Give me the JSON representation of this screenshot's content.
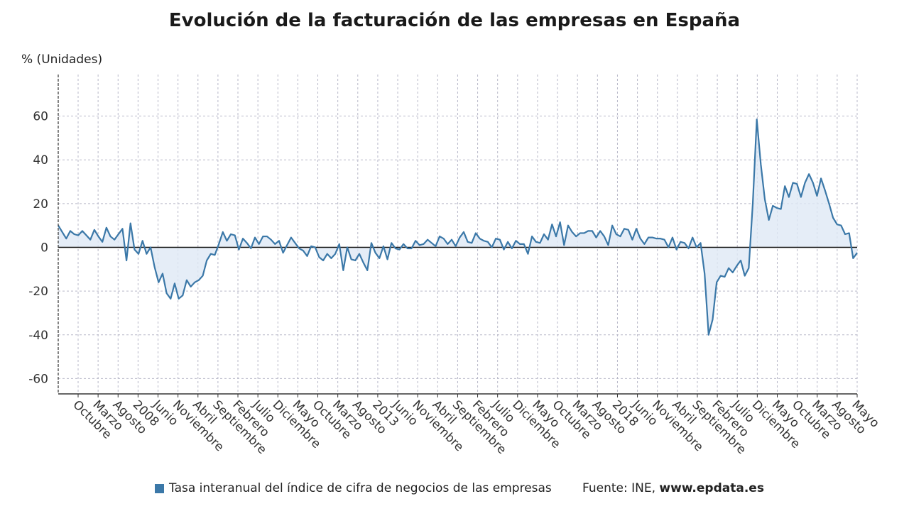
{
  "title": "Evolución de la facturación de las empresas en España",
  "legend": {
    "label": "Tasa interanual del índice de cifra de negocios de las empresas",
    "color": "#3b78a8"
  },
  "source": {
    "prefix": "Fuente: INE, ",
    "site": "www.epdata.es"
  },
  "chart_data": {
    "type": "area",
    "ylabel": "% (Unidades)",
    "xlabel": "",
    "ylim": [
      -67,
      79
    ],
    "yticks": [
      60,
      40,
      20,
      0,
      -20,
      -40,
      -60
    ],
    "grid": true,
    "x_tick_labels": [
      "Octubre",
      "Marzo",
      "Agosto",
      "2008",
      "Junio",
      "Noviembre",
      "Abril",
      "Septiembre",
      "Febrero",
      "Julio",
      "Diciembre",
      "Mayo",
      "Octubre",
      "Marzo",
      "Agosto",
      "2013",
      "Junio",
      "Noviembre",
      "Abril",
      "Septiembre",
      "Febrero",
      "Julio",
      "Diciembre",
      "Mayo",
      "Octubre",
      "Marzo",
      "Agosto",
      "2018",
      "Junio",
      "Noviembre",
      "Abril",
      "Septiembre",
      "Febrero",
      "Julio",
      "Diciembre",
      "Mayo",
      "Octubre",
      "Marzo",
      "Agosto",
      "Mayo"
    ],
    "series": [
      {
        "name": "Tasa interanual del índice de cifra de negocios de las empresas",
        "color": "#3b78a8",
        "values": [
          10,
          7,
          4,
          7.5,
          6,
          5.5,
          7.5,
          5.5,
          3.5,
          8,
          5,
          2.5,
          9,
          5,
          3.5,
          6,
          8.5,
          -6,
          11,
          -1,
          -3,
          3,
          -3,
          0,
          -9,
          -16,
          -12,
          -21,
          -23.5,
          -16.5,
          -23.5,
          -22,
          -15,
          -18,
          -16,
          -15,
          -13,
          -6,
          -3,
          -3.5,
          1.5,
          7,
          3,
          6,
          5.5,
          -1,
          4,
          2,
          -0.5,
          4.5,
          1.5,
          5,
          5,
          3.5,
          1.5,
          3,
          -2.5,
          1,
          4.5,
          2,
          -0.5,
          -1.5,
          -4,
          0.5,
          0,
          -4.5,
          -6,
          -3,
          -5,
          -3,
          1.5,
          -10.5,
          0,
          -5.5,
          -6,
          -3,
          -7,
          -10.5,
          2,
          -2.5,
          -5,
          0.5,
          -5.5,
          2,
          -0.5,
          -1,
          1.5,
          -0.5,
          -0.5,
          3,
          1,
          1.5,
          3.5,
          2,
          0.5,
          5,
          4,
          1.5,
          3.5,
          0.5,
          4.5,
          7,
          2.5,
          2,
          6.5,
          4,
          3,
          2.5,
          0,
          4,
          3.5,
          -1,
          2.5,
          -0.5,
          3,
          1.5,
          1.5,
          -3,
          5,
          2.5,
          2,
          6,
          3.5,
          10.5,
          5,
          11.5,
          1,
          10,
          7,
          5,
          6.5,
          6.5,
          7.5,
          7.5,
          4.5,
          7.5,
          5,
          1,
          10,
          6,
          5,
          8.5,
          8,
          3.5,
          8.5,
          4,
          1.5,
          4.5,
          4.5,
          4,
          4,
          3.5,
          0,
          4.5,
          -1,
          2.5,
          2,
          -0.5,
          4.5,
          0,
          2,
          -12,
          -40,
          -33,
          -16,
          -13,
          -13.5,
          -9.5,
          -11.5,
          -8.5,
          -6,
          -13,
          -9.5,
          20,
          58.5,
          38,
          22,
          12.5,
          19,
          18,
          17.5,
          28,
          23,
          29.5,
          29,
          23,
          29.5,
          33.5,
          29.5,
          23.5,
          31.5,
          26,
          20,
          13.5,
          10.5,
          10,
          6,
          6.5,
          -5,
          -2.5
        ]
      }
    ]
  }
}
